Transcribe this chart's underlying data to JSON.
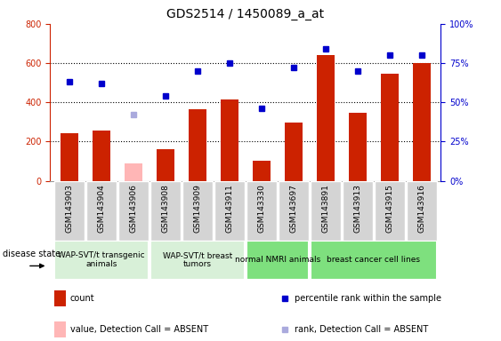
{
  "title": "GDS2514 / 1450089_a_at",
  "samples": [
    "GSM143903",
    "GSM143904",
    "GSM143906",
    "GSM143908",
    "GSM143909",
    "GSM143911",
    "GSM143330",
    "GSM143697",
    "GSM143891",
    "GSM143913",
    "GSM143915",
    "GSM143916"
  ],
  "count_values": [
    242,
    258,
    null,
    163,
    365,
    415,
    100,
    295,
    640,
    348,
    545,
    600
  ],
  "count_absent": [
    null,
    null,
    88,
    null,
    null,
    null,
    null,
    null,
    null,
    null,
    null,
    null
  ],
  "percentile_values": [
    63,
    62,
    null,
    54,
    70,
    75,
    46,
    72,
    84,
    70,
    80,
    80
  ],
  "percentile_absent": [
    null,
    null,
    42,
    null,
    null,
    null,
    null,
    null,
    null,
    null,
    null,
    null
  ],
  "left_ylim": [
    0,
    800
  ],
  "right_ylim": [
    0,
    100
  ],
  "left_yticks": [
    0,
    200,
    400,
    600,
    800
  ],
  "right_yticks": [
    0,
    25,
    50,
    75,
    100
  ],
  "right_yticklabels": [
    "0%",
    "25%",
    "50%",
    "75%",
    "100%"
  ],
  "bar_color": "#CC2200",
  "bar_absent_color": "#FFB6B6",
  "dot_color": "#0000CC",
  "dot_absent_color": "#AAAADD",
  "grid_color": "#000000",
  "group_labels": [
    "WAP-SVT/t transgenic\nanimals",
    "WAP-SVT/t breast\ntumors",
    "normal NMRI animals",
    "breast cancer cell lines"
  ],
  "group_ranges": [
    [
      0,
      3
    ],
    [
      3,
      6
    ],
    [
      6,
      8
    ],
    [
      8,
      12
    ]
  ],
  "group_colors_light": "#D8F0D8",
  "group_colors_bright": "#7EE07E",
  "tick_bg_color": "#D4D4D4",
  "ylabel_left_color": "#CC2200",
  "ylabel_right_color": "#0000CC",
  "legend_items": [
    {
      "label": "count",
      "color": "#CC2200",
      "type": "bar"
    },
    {
      "label": "percentile rank within the sample",
      "color": "#0000CC",
      "type": "dot"
    },
    {
      "label": "value, Detection Call = ABSENT",
      "color": "#FFB6B6",
      "type": "bar"
    },
    {
      "label": "rank, Detection Call = ABSENT",
      "color": "#AAAADD",
      "type": "dot"
    }
  ]
}
